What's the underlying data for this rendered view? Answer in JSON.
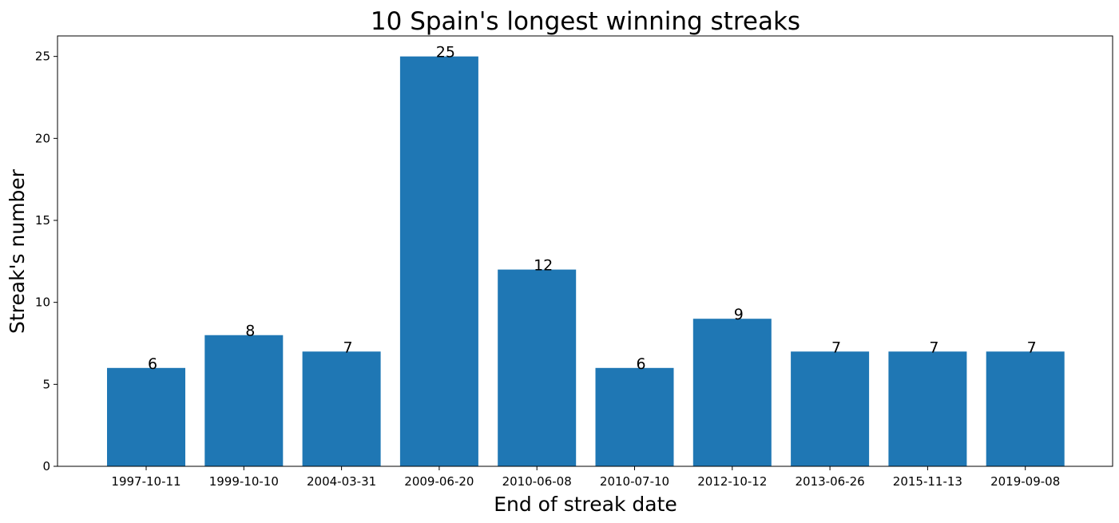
{
  "chart_data": {
    "type": "bar",
    "title": "10 Spain's longest winning streaks",
    "xlabel": "End of streak date",
    "ylabel": "Streak's number",
    "categories": [
      "1997-10-11",
      "1999-10-10",
      "2004-03-31",
      "2009-06-20",
      "2010-06-08",
      "2010-07-10",
      "2012-10-12",
      "2013-06-26",
      "2015-11-13",
      "2019-09-08"
    ],
    "values": [
      6,
      8,
      7,
      25,
      12,
      6,
      9,
      7,
      7,
      7
    ],
    "ylim": [
      0,
      26.25
    ],
    "yticks": [
      0,
      5,
      10,
      15,
      20,
      25
    ],
    "bar_color": "#1f77b4",
    "grid": false,
    "legend": "none"
  }
}
